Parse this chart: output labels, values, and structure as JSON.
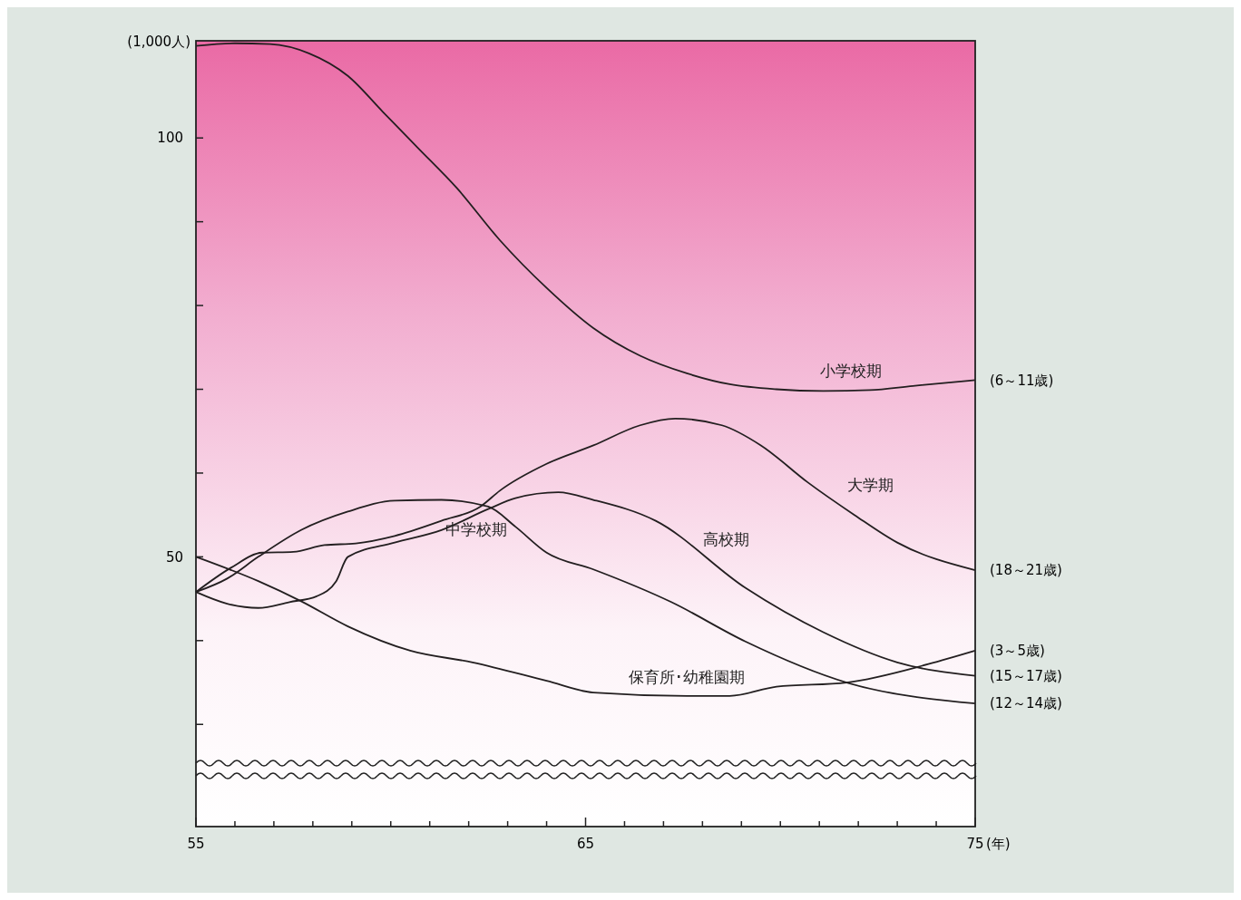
{
  "chart_data": {
    "type": "line",
    "ylabel": "(1,000人)",
    "xlabel": "(年)",
    "xlim": [
      55,
      75
    ],
    "ylim": [
      17.8,
      111.6
    ],
    "xticks": [
      55,
      {
        "value": 56,
        "label": null
      },
      {
        "value": 57,
        "label": null
      },
      {
        "value": 58,
        "label": null
      },
      {
        "value": 59,
        "label": null
      },
      {
        "value": 60,
        "label": null
      },
      {
        "value": 61,
        "label": null
      },
      {
        "value": 62,
        "label": null
      },
      {
        "value": 63,
        "label": null
      },
      {
        "value": 64,
        "label": null
      },
      65,
      {
        "value": 66,
        "label": null
      },
      {
        "value": 67,
        "label": null
      },
      {
        "value": 68,
        "label": null
      },
      {
        "value": 69,
        "label": null
      },
      {
        "value": 70,
        "label": null
      },
      {
        "value": 71,
        "label": null
      },
      {
        "value": 72,
        "label": null
      },
      {
        "value": 73,
        "label": null
      },
      {
        "value": 74,
        "label": null
      },
      75
    ],
    "yticks": [
      {
        "value": 30,
        "label": null
      },
      {
        "value": 40,
        "label": null
      },
      50,
      {
        "value": 60,
        "label": null
      },
      {
        "value": 70,
        "label": null
      },
      {
        "value": 80,
        "label": null
      },
      {
        "value": 90,
        "label": null
      },
      100
    ],
    "grid": false,
    "legend": false,
    "marker": "none",
    "line_style": "solid",
    "series": [
      {
        "name": "小学校期",
        "color": "#231f20",
        "x": [
          55,
          56,
          56.9,
          57.9,
          58.9,
          59.8,
          60.7,
          61.7,
          62.8,
          64.0,
          65.2,
          66.4,
          67.6,
          68.7,
          69.9,
          71.1,
          72.3,
          73.4,
          75
        ],
        "values": [
          111.0,
          111.3,
          111.2,
          110.1,
          107.4,
          103.1,
          98.8,
          94.0,
          87.8,
          82.1,
          77.3,
          74.0,
          71.9,
          70.6,
          70.0,
          69.8,
          69.9,
          70.4,
          71.1
        ]
      },
      {
        "name": "大学期",
        "color": "#231f20",
        "x": [
          55,
          55.9,
          56.7,
          57.5,
          58.3,
          59.1,
          60.1,
          61.3,
          62.3,
          62.8,
          64.0,
          65.2,
          66.4,
          67.3,
          68.5,
          69.5,
          70.7,
          71.9,
          73.0,
          75
        ],
        "values": [
          45.8,
          48.7,
          50.5,
          50.6,
          51.4,
          51.6,
          52.5,
          54.3,
          56.0,
          57.9,
          61.1,
          63.3,
          65.7,
          66.5,
          65.7,
          63.3,
          58.9,
          55.0,
          51.7,
          48.4
        ]
      },
      {
        "name": "高校期",
        "color": "#231f20",
        "x": [
          55,
          55.8,
          56.6,
          57.4,
          58.1,
          58.6,
          58.9,
          60.1,
          61.3,
          62.5,
          63.2,
          64.3,
          65.2,
          66.8,
          69.1,
          71.1,
          73.0,
          75
        ],
        "values": [
          45.8,
          44.4,
          43.9,
          44.6,
          45.3,
          47.1,
          50.0,
          51.7,
          53.2,
          55.7,
          57.0,
          57.7,
          56.8,
          54.3,
          46.3,
          41.0,
          37.4,
          35.8
        ]
      },
      {
        "name": "中学校期",
        "color": "#231f20",
        "x": [
          55,
          55.8,
          56.6,
          57.7,
          58.9,
          60.1,
          61.3,
          62.5,
          63.2,
          64.0,
          65.2,
          67.2,
          69.1,
          71.7,
          75
        ],
        "values": [
          45.8,
          47.4,
          50.0,
          53.2,
          55.4,
          56.7,
          56.8,
          56.0,
          53.6,
          50.5,
          48.5,
          44.6,
          39.9,
          35.0,
          32.5
        ]
      },
      {
        "name": "保育所･幼稚園期",
        "color": "#231f20",
        "x": [
          55,
          56.6,
          57.7,
          58.9,
          60.5,
          62.1,
          64.0,
          65.2,
          67.6,
          68.7,
          69.9,
          71.7,
          73.8,
          75
        ],
        "values": [
          50.0,
          47.1,
          44.7,
          41.7,
          38.8,
          37.4,
          35.2,
          33.8,
          33.4,
          33.4,
          34.5,
          35.0,
          37.2,
          38.8
        ]
      }
    ],
    "annotations": [
      "(6～11歳)",
      "(18～21歳)",
      "(3～5歳)",
      "(15～17歳)",
      "(12～14歳)"
    ]
  }
}
